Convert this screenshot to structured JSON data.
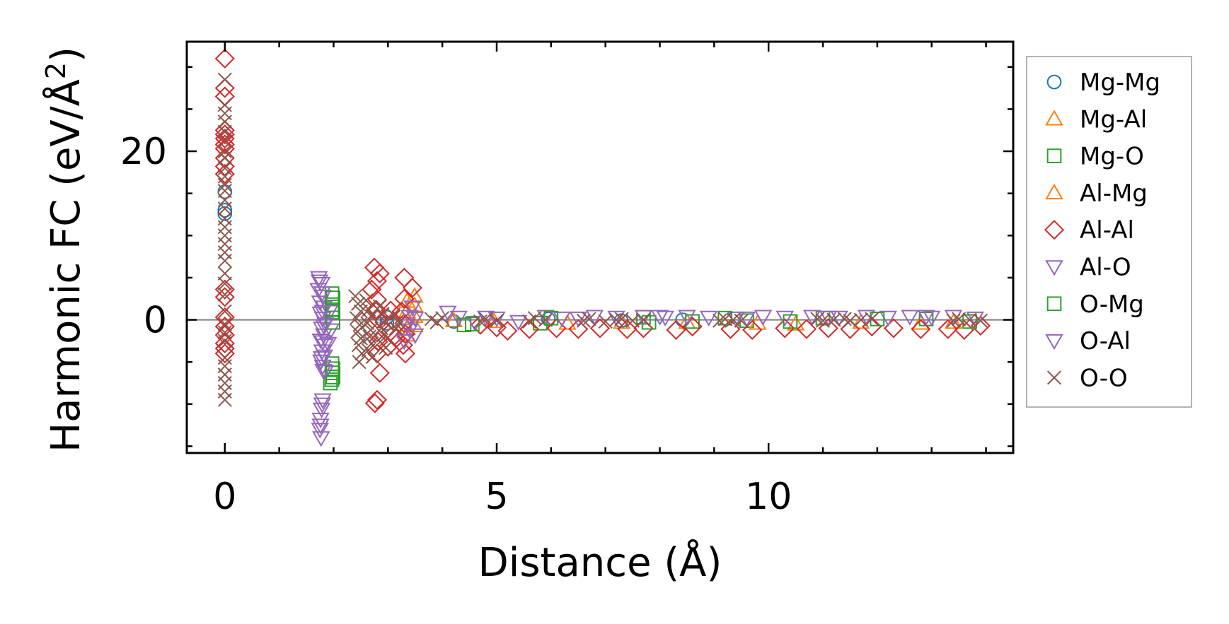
{
  "chart_data": {
    "type": "scatter",
    "xlabel": "Distance (Å)",
    "ylabel_main": "Harmonic FC (eV/Å",
    "ylabel_sup": "2",
    "ylabel_close": ")",
    "xlim": [
      -0.7,
      14.5
    ],
    "ylim": [
      -15.8,
      33.0
    ],
    "xticks": [
      0,
      5,
      10
    ],
    "xtick_labels": [
      "0",
      "5",
      "10"
    ],
    "yticks": [
      0,
      20
    ],
    "ytick_labels": [
      "0",
      "20"
    ],
    "x_minor_step": 1,
    "y_minor_step": 5,
    "zero_line": 0,
    "grid": false,
    "legend_position": "right, outside the axes",
    "series": [
      {
        "name": "Mg-Mg",
        "marker": "circle",
        "color": "#1f77b4",
        "points": [
          [
            0,
            15.2
          ],
          [
            0,
            13.0
          ],
          [
            0,
            12.6
          ],
          [
            2.98,
            -0.4
          ],
          [
            2.98,
            0.3
          ],
          [
            4.21,
            -0.2
          ],
          [
            5.95,
            0.1
          ],
          [
            7.29,
            -0.1
          ],
          [
            8.42,
            0.0
          ]
        ]
      },
      {
        "name": "Mg-Al",
        "marker": "triangle-up",
        "color": "#ff7f0e",
        "points": [
          [
            3.49,
            2.8
          ],
          [
            3.49,
            1.7
          ],
          [
            3.49,
            0.4
          ],
          [
            3.49,
            -0.7
          ],
          [
            4.21,
            -0.1
          ],
          [
            6.3,
            -0.4
          ],
          [
            8.5,
            -0.3
          ],
          [
            10.5,
            -0.5
          ],
          [
            12.8,
            -0.4
          ]
        ]
      },
      {
        "name": "Mg-O",
        "marker": "square",
        "color": "#2ca02c",
        "points": [
          [
            1.97,
            3.1
          ],
          [
            1.97,
            1.8
          ],
          [
            1.97,
            0.9
          ],
          [
            1.97,
            -5.2
          ],
          [
            1.97,
            -6.3
          ],
          [
            1.97,
            -7.1
          ],
          [
            1.94,
            -7.5
          ],
          [
            4.4,
            -0.6
          ],
          [
            5.8,
            -0.4
          ],
          [
            7.7,
            0.3
          ],
          [
            8.6,
            -0.2
          ],
          [
            9.6,
            -0.1
          ],
          [
            11.0,
            0.2
          ],
          [
            12.9,
            0.1
          ]
        ]
      },
      {
        "name": "Al-Mg",
        "marker": "triangle-up",
        "color": "#ff7f0e",
        "points": [
          [
            3.35,
            2.2
          ],
          [
            3.35,
            1.0
          ],
          [
            3.35,
            -1.0
          ],
          [
            3.35,
            -1.8
          ],
          [
            4.95,
            -0.2
          ],
          [
            7.3,
            -0.3
          ],
          [
            9.8,
            -0.4
          ],
          [
            11.7,
            -0.3
          ],
          [
            13.4,
            -0.3
          ]
        ]
      },
      {
        "name": "Al-Al",
        "marker": "diamond",
        "color": "#d62728",
        "points": [
          [
            0,
            31.0
          ],
          [
            0,
            27.5
          ],
          [
            0,
            26.5
          ],
          [
            0,
            22.5
          ],
          [
            0,
            22.0
          ],
          [
            0,
            21.5
          ],
          [
            0,
            20.8
          ],
          [
            0,
            20.3
          ],
          [
            0,
            19.2
          ],
          [
            0,
            18.2
          ],
          [
            0,
            17.3
          ],
          [
            0,
            3.6
          ],
          [
            0,
            2.7
          ],
          [
            0,
            0.3
          ],
          [
            0,
            -0.8
          ],
          [
            0,
            -1.8
          ],
          [
            0,
            -2.8
          ],
          [
            0,
            -3.4
          ],
          [
            0,
            -4.0
          ],
          [
            2.75,
            6.2
          ],
          [
            2.85,
            5.5
          ],
          [
            2.8,
            4.6
          ],
          [
            2.7,
            3.6
          ],
          [
            2.8,
            2.4
          ],
          [
            2.78,
            1.2
          ],
          [
            2.8,
            0.1
          ],
          [
            2.8,
            -1.5
          ],
          [
            2.82,
            -2.6
          ],
          [
            2.8,
            -4.0
          ],
          [
            2.85,
            -6.3
          ],
          [
            2.8,
            -9.5
          ],
          [
            2.76,
            -9.9
          ],
          [
            3.3,
            5.0
          ],
          [
            3.45,
            3.8
          ],
          [
            3.3,
            2.5
          ],
          [
            3.25,
            1.0
          ],
          [
            3.3,
            -0.4
          ],
          [
            3.32,
            -1.7
          ],
          [
            3.28,
            -3.0
          ],
          [
            3.32,
            -4.0
          ],
          [
            3.05,
            1.1
          ],
          [
            3.1,
            -0.2
          ],
          [
            3.05,
            -1.4
          ],
          [
            3.15,
            -2.2
          ],
          [
            3.0,
            -3.2
          ],
          [
            4.7,
            -0.6
          ],
          [
            5.0,
            -0.9
          ],
          [
            5.2,
            -1.3
          ],
          [
            5.6,
            -1.1
          ],
          [
            6.1,
            -1.0
          ],
          [
            6.5,
            -1.1
          ],
          [
            6.9,
            -1.0
          ],
          [
            7.4,
            -1.1
          ],
          [
            7.7,
            -1.0
          ],
          [
            8.3,
            -1.2
          ],
          [
            8.6,
            -0.8
          ],
          [
            9.3,
            -1.1
          ],
          [
            9.7,
            -1.2
          ],
          [
            10.3,
            -1.0
          ],
          [
            10.7,
            -1.1
          ],
          [
            11.1,
            -1.0
          ],
          [
            11.5,
            -1.1
          ],
          [
            11.9,
            -0.8
          ],
          [
            12.3,
            -1.0
          ],
          [
            12.8,
            -1.1
          ],
          [
            13.3,
            -1.1
          ],
          [
            13.6,
            -1.2
          ],
          [
            13.9,
            -0.7
          ]
        ]
      },
      {
        "name": "Al-O",
        "marker": "triangle-down",
        "color": "#9467bd",
        "points": [
          [
            1.73,
            5.0
          ],
          [
            1.78,
            4.3
          ],
          [
            1.72,
            3.6
          ],
          [
            1.8,
            2.8
          ],
          [
            1.75,
            2.1
          ],
          [
            1.82,
            1.5
          ],
          [
            1.76,
            0.8
          ],
          [
            1.8,
            0.2
          ],
          [
            1.85,
            -0.5
          ],
          [
            1.78,
            -1.0
          ],
          [
            1.82,
            -1.8
          ],
          [
            1.76,
            -2.4
          ],
          [
            1.84,
            -3.0
          ],
          [
            1.79,
            -3.7
          ],
          [
            1.83,
            -4.3
          ],
          [
            1.77,
            -4.9
          ],
          [
            1.8,
            -5.5
          ],
          [
            1.85,
            -6.1
          ],
          [
            1.8,
            -9.5
          ],
          [
            1.78,
            -10.6
          ],
          [
            1.76,
            -11.8
          ],
          [
            1.75,
            -13.0
          ],
          [
            1.77,
            -14.0
          ],
          [
            1.93,
            1.0
          ],
          [
            1.95,
            -1.2
          ],
          [
            1.9,
            -2.8
          ],
          [
            3.45,
            1.5
          ],
          [
            3.4,
            0.4
          ],
          [
            3.35,
            -0.7
          ],
          [
            3.5,
            -1.8
          ],
          [
            3.3,
            -2.5
          ],
          [
            4.1,
            0.9
          ],
          [
            4.3,
            0.3
          ],
          [
            4.6,
            -0.3
          ],
          [
            5.0,
            0.2
          ],
          [
            5.4,
            -0.2
          ],
          [
            5.9,
            0.4
          ],
          [
            6.2,
            0.2
          ],
          [
            6.8,
            0.4
          ],
          [
            7.2,
            0.3
          ],
          [
            7.7,
            0.4
          ],
          [
            8.1,
            0.3
          ],
          [
            8.5,
            0.4
          ],
          [
            8.9,
            0.3
          ],
          [
            9.4,
            0.2
          ],
          [
            9.9,
            0.4
          ],
          [
            10.3,
            0.3
          ],
          [
            10.8,
            0.4
          ],
          [
            11.3,
            0.3
          ],
          [
            11.8,
            0.4
          ],
          [
            12.2,
            0.3
          ],
          [
            12.6,
            0.4
          ],
          [
            13.0,
            0.3
          ],
          [
            13.4,
            0.4
          ],
          [
            13.8,
            0.2
          ]
        ]
      },
      {
        "name": "O-Mg",
        "marker": "square",
        "color": "#2ca02c",
        "points": [
          [
            1.99,
            2.6
          ],
          [
            1.99,
            1.2
          ],
          [
            1.99,
            -0.3
          ],
          [
            1.99,
            -5.8
          ],
          [
            1.99,
            -6.8
          ],
          [
            4.55,
            -0.5
          ],
          [
            6.0,
            0.2
          ],
          [
            7.8,
            -0.3
          ],
          [
            9.2,
            0.2
          ],
          [
            10.4,
            -0.2
          ],
          [
            12.0,
            0.1
          ],
          [
            13.7,
            -0.2
          ]
        ]
      },
      {
        "name": "O-Al",
        "marker": "triangle-down",
        "color": "#9467bd",
        "points": [
          [
            1.74,
            4.6
          ],
          [
            1.79,
            3.2
          ],
          [
            1.8,
            1.0
          ],
          [
            1.82,
            -0.7
          ],
          [
            1.8,
            -2.6
          ],
          [
            1.78,
            -4.5
          ],
          [
            1.81,
            -6.0
          ],
          [
            1.79,
            -10.0
          ],
          [
            1.76,
            -12.5
          ],
          [
            3.5,
            0.2
          ],
          [
            3.4,
            -1.2
          ],
          [
            4.8,
            0.3
          ],
          [
            6.5,
            0.2
          ],
          [
            8.0,
            0.4
          ],
          [
            9.6,
            0.2
          ],
          [
            11.1,
            0.3
          ],
          [
            12.9,
            0.4
          ]
        ]
      },
      {
        "name": "O-O",
        "marker": "x",
        "color": "#8c564b",
        "points": [
          [
            0,
            28.5
          ],
          [
            0,
            25.5
          ],
          [
            0,
            24.5
          ],
          [
            0,
            23.5
          ],
          [
            0,
            22.3
          ],
          [
            0,
            21.2
          ],
          [
            0,
            20.0
          ],
          [
            0,
            19.2
          ],
          [
            0,
            18.0
          ],
          [
            0,
            17.0
          ],
          [
            0,
            16.0
          ],
          [
            0,
            15.3
          ],
          [
            0,
            14.2
          ],
          [
            0,
            13.2
          ],
          [
            0,
            12.0
          ],
          [
            0,
            11.0
          ],
          [
            0,
            10.0
          ],
          [
            0,
            9.0
          ],
          [
            0,
            8.0
          ],
          [
            0,
            7.0
          ],
          [
            0,
            5.5
          ],
          [
            0,
            4.3
          ],
          [
            0,
            3.0
          ],
          [
            0,
            1.0
          ],
          [
            0,
            -0.5
          ],
          [
            0,
            -1.5
          ],
          [
            0,
            -2.5
          ],
          [
            0,
            -4.5
          ],
          [
            0,
            -5.5
          ],
          [
            0,
            -6.5
          ],
          [
            0,
            -7.5
          ],
          [
            0,
            -8.5
          ],
          [
            0,
            -9.5
          ],
          [
            2.4,
            2.8
          ],
          [
            2.45,
            1.9
          ],
          [
            2.5,
            1.0
          ],
          [
            2.42,
            0.2
          ],
          [
            2.48,
            -0.6
          ],
          [
            2.44,
            -1.4
          ],
          [
            2.5,
            -2.2
          ],
          [
            2.46,
            -3.0
          ],
          [
            2.52,
            -4.0
          ],
          [
            2.47,
            -5.0
          ],
          [
            2.6,
            2.3
          ],
          [
            2.65,
            1.2
          ],
          [
            2.7,
            0.4
          ],
          [
            2.62,
            -0.4
          ],
          [
            2.68,
            -1.2
          ],
          [
            2.66,
            -2.0
          ],
          [
            2.7,
            -2.8
          ],
          [
            2.64,
            -3.6
          ],
          [
            2.72,
            -4.4
          ],
          [
            2.85,
            1.6
          ],
          [
            2.9,
            0.7
          ],
          [
            2.95,
            -0.2
          ],
          [
            2.88,
            -1.0
          ],
          [
            2.92,
            -1.8
          ],
          [
            2.86,
            -2.6
          ],
          [
            2.96,
            -3.3
          ],
          [
            3.1,
            0.6
          ],
          [
            3.2,
            -0.3
          ],
          [
            3.15,
            -1.0
          ],
          [
            3.8,
            0.1
          ],
          [
            3.9,
            -0.3
          ],
          [
            4.0,
            0.2
          ],
          [
            4.7,
            -0.2
          ],
          [
            4.8,
            0.1
          ],
          [
            5.0,
            -0.1
          ],
          [
            5.6,
            -0.2
          ],
          [
            5.7,
            0.2
          ],
          [
            5.9,
            0.0
          ],
          [
            6.6,
            -0.1
          ],
          [
            6.7,
            0.1
          ],
          [
            7.0,
            -0.2
          ],
          [
            7.2,
            0.0
          ],
          [
            7.3,
            0.1
          ],
          [
            7.5,
            -0.1
          ],
          [
            7.7,
            0.0
          ],
          [
            9.1,
            -0.1
          ],
          [
            9.2,
            0.1
          ],
          [
            9.35,
            0.0
          ],
          [
            9.5,
            -0.1
          ],
          [
            10.9,
            0.1
          ],
          [
            11.0,
            -0.1
          ],
          [
            11.2,
            0.0
          ],
          [
            11.4,
            0.1
          ],
          [
            11.5,
            -0.1
          ],
          [
            11.7,
            0.0
          ],
          [
            11.9,
            0.1
          ],
          [
            13.4,
            -0.1
          ],
          [
            13.5,
            0.1
          ],
          [
            13.7,
            0.0
          ],
          [
            13.9,
            -0.1
          ]
        ]
      }
    ]
  }
}
